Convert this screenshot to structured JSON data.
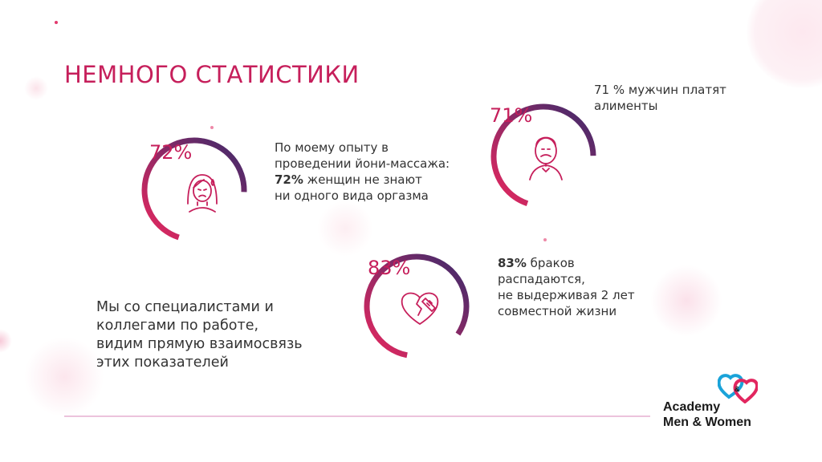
{
  "slide": {
    "title": "НЕМНОГО СТАТИСТИКИ",
    "colors": {
      "accent": "#c61f5b",
      "ring_start": "#e8285f",
      "ring_end": "#3b2a6b",
      "divider": "#ecc3dc"
    }
  },
  "stats": [
    {
      "value": 72,
      "label": "72%",
      "icon": "sad-woman-icon",
      "text_lines": [
        "По моему опыту в",
        "проведении йони-массажа:",
        "",
        "ни одного вида оргазма"
      ],
      "bold_part": "72%",
      "bold_rest": " женщин не знают"
    },
    {
      "value": 71,
      "label": "71%",
      "icon": "man-with-mustache-icon",
      "text_lines": [
        "71 % мужчин платят",
        "алименты"
      ]
    },
    {
      "value": 83,
      "label": "83%",
      "icon": "broken-heart-icon",
      "bold_part": "83%",
      "bold_rest": " браков",
      "text_lines": [
        "",
        "распадаются,",
        "не выдерживая 2 лет",
        "совместной жизни"
      ]
    }
  ],
  "summary_lines": [
    "Мы со специалистами и",
    "коллегами по работе,",
    "видим прямую взаимосвязь",
    "этих показателей"
  ],
  "logo": {
    "icon": "two-hearts-logo-icon",
    "ampersand": "&",
    "line1": "Academy",
    "line2": "Men & Women"
  }
}
